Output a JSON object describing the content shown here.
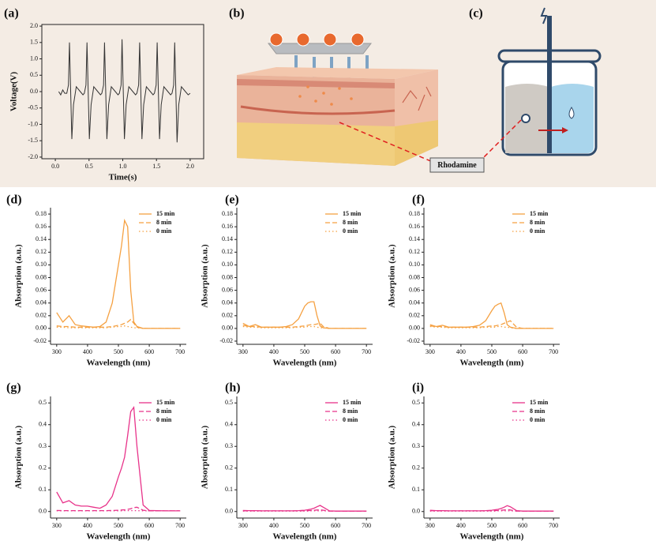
{
  "chart_data": [
    {
      "type": "line",
      "panel_label": "(a)",
      "x_label": "Time(s)",
      "y_label": "Voltage(V)",
      "frame": true,
      "color": "#333333",
      "xlim": [
        -0.2,
        2.2
      ],
      "ylim": [
        -2.05,
        2.05
      ],
      "xticks": [
        {
          "value": 0,
          "label": "0.0"
        },
        0.5,
        {
          "value": 1,
          "label": "1.0"
        },
        1.5,
        {
          "value": 2,
          "label": "2.0"
        }
      ],
      "yticks": [
        {
          "value": -2,
          "label": "-2.0"
        },
        -1.5,
        {
          "value": -1,
          "label": "-1.0"
        },
        -0.5,
        {
          "value": 0,
          "label": "0.0"
        },
        0.5,
        {
          "value": 1,
          "label": "1.0"
        },
        1.5,
        {
          "value": 2,
          "label": "2.0"
        }
      ],
      "x": [
        0.05,
        0.08,
        0.11,
        0.14,
        0.17,
        0.195,
        0.21,
        0.245,
        0.27,
        0.31,
        0.37,
        0.41,
        0.43,
        0.455,
        0.47,
        0.505,
        0.53,
        0.57,
        0.63,
        0.67,
        0.69,
        0.715,
        0.73,
        0.765,
        0.79,
        0.83,
        0.89,
        0.93,
        0.95,
        0.975,
        0.99,
        1.025,
        1.05,
        1.09,
        1.15,
        1.19,
        1.21,
        1.235,
        1.25,
        1.285,
        1.31,
        1.35,
        1.41,
        1.45,
        1.47,
        1.495,
        1.51,
        1.545,
        1.57,
        1.61,
        1.67,
        1.71,
        1.73,
        1.755,
        1.77,
        1.805,
        1.83,
        1.87,
        1.93,
        1.97,
        2.0
      ],
      "values": [
        0.0,
        -0.1,
        0.05,
        -0.05,
        -0.05,
        0.2,
        1.5,
        -1.45,
        -0.4,
        0.15,
        0.0,
        -0.1,
        -0.05,
        0.2,
        1.5,
        -1.45,
        -0.4,
        0.15,
        0.0,
        -0.1,
        -0.05,
        0.2,
        1.5,
        -1.45,
        -0.4,
        0.15,
        0.0,
        -0.1,
        -0.05,
        0.2,
        1.6,
        -1.45,
        -0.4,
        0.15,
        0.0,
        -0.1,
        -0.05,
        0.2,
        1.5,
        -1.45,
        -0.4,
        0.15,
        0.0,
        -0.1,
        -0.05,
        0.2,
        1.5,
        -1.45,
        -0.4,
        0.15,
        0.0,
        -0.1,
        -0.05,
        0.2,
        1.5,
        -1.55,
        -0.4,
        0.15,
        0.0,
        -0.1,
        -0.05
      ]
    },
    {
      "type": "line",
      "panel_label": "(d)",
      "x_label": "Wavelength (nm)",
      "y_label": "Absorption (a.u.)",
      "legend": "upper right",
      "xlim": [
        280,
        720
      ],
      "ylim": [
        -0.025,
        0.19
      ],
      "xticks": [
        300,
        400,
        500,
        600,
        700
      ],
      "yticks": [
        -0.02,
        {
          "value": 0,
          "label": "0.00"
        },
        0.02,
        0.04,
        0.06,
        0.08,
        {
          "value": 0.1,
          "label": "0.10"
        },
        0.12,
        0.14,
        0.16,
        0.18
      ],
      "x": [
        300,
        320,
        340,
        360,
        380,
        400,
        420,
        440,
        460,
        480,
        500,
        510,
        520,
        530,
        540,
        550,
        560,
        580,
        600,
        650,
        700
      ],
      "series": [
        {
          "name": "15 min",
          "color": "#f5a142",
          "style": "solid",
          "values": [
            0.025,
            0.01,
            0.02,
            0.006,
            0.004,
            0.003,
            0.002,
            0.003,
            0.01,
            0.04,
            0.1,
            0.13,
            0.17,
            0.16,
            0.06,
            0.01,
            0.003,
            0,
            0,
            0,
            0
          ]
        },
        {
          "name": "8 min",
          "color": "#f5a142",
          "style": "dashed",
          "values": [
            0.004,
            0.003,
            0.003,
            0.002,
            0.002,
            0.002,
            0.002,
            0.002,
            0.002,
            0.003,
            0.005,
            0.006,
            0.008,
            0.01,
            0.014,
            0.008,
            0.002,
            0,
            0,
            0,
            0
          ]
        },
        {
          "name": "0 min",
          "color": "#f5a142",
          "style": "dotted",
          "values": [
            0.002,
            0.002,
            0.001,
            0.001,
            0.001,
            0.001,
            0.001,
            0.001,
            0.001,
            0.002,
            0.003,
            0.003,
            0.004,
            0.003,
            0.002,
            0.001,
            0.001,
            0,
            0,
            0,
            0
          ]
        }
      ]
    },
    {
      "type": "line",
      "panel_label": "(e)",
      "x_label": "Wavelength (nm)",
      "y_label": "Absorption (a.u.)",
      "legend": "upper right",
      "xlim": [
        280,
        720
      ],
      "ylim": [
        -0.025,
        0.19
      ],
      "xticks": [
        300,
        400,
        500,
        600,
        700
      ],
      "yticks": [
        -0.02,
        {
          "value": 0,
          "label": "0.00"
        },
        0.02,
        0.04,
        0.06,
        0.08,
        {
          "value": 0.1,
          "label": "0.10"
        },
        0.12,
        0.14,
        0.16,
        0.18
      ],
      "x": [
        300,
        320,
        340,
        360,
        380,
        400,
        420,
        440,
        460,
        480,
        500,
        510,
        520,
        530,
        540,
        550,
        560,
        580,
        600,
        650,
        700
      ],
      "series": [
        {
          "name": "15 min",
          "color": "#f5a142",
          "style": "solid",
          "values": [
            0.008,
            0.003,
            0.006,
            0.002,
            0.002,
            0.002,
            0.002,
            0.003,
            0.006,
            0.015,
            0.035,
            0.04,
            0.042,
            0.042,
            0.02,
            0.004,
            0.001,
            0,
            0,
            0,
            0
          ]
        },
        {
          "name": "8 min",
          "color": "#f5a142",
          "style": "dashed",
          "values": [
            0.005,
            0.003,
            0.003,
            0.002,
            0.002,
            0.002,
            0.002,
            0.002,
            0.002,
            0.003,
            0.004,
            0.005,
            0.006,
            0.006,
            0.007,
            0.008,
            0.003,
            0,
            0,
            0,
            0
          ]
        },
        {
          "name": "0 min",
          "color": "#f5a142",
          "style": "dotted",
          "values": [
            0.003,
            0.002,
            0.002,
            0.001,
            0.001,
            0.001,
            0.001,
            0.001,
            0.001,
            0.002,
            0.002,
            0.003,
            0.003,
            0.003,
            0.002,
            0.001,
            0.001,
            0,
            0,
            0,
            0
          ]
        }
      ]
    },
    {
      "type": "line",
      "panel_label": "(f)",
      "x_label": "Wavelength (nm)",
      "y_label": "Absorption (a.u.)",
      "legend": "upper right",
      "xlim": [
        280,
        720
      ],
      "ylim": [
        -0.025,
        0.19
      ],
      "xticks": [
        300,
        400,
        500,
        600,
        700
      ],
      "yticks": [
        -0.02,
        {
          "value": 0,
          "label": "0.00"
        },
        0.02,
        0.04,
        0.06,
        0.08,
        {
          "value": 0.1,
          "label": "0.10"
        },
        0.12,
        0.14,
        0.16,
        0.18
      ],
      "x": [
        300,
        320,
        340,
        360,
        380,
        400,
        420,
        440,
        460,
        480,
        500,
        510,
        520,
        530,
        540,
        550,
        560,
        580,
        600,
        650,
        700
      ],
      "series": [
        {
          "name": "15 min",
          "color": "#f5a142",
          "style": "solid",
          "values": [
            0.006,
            0.003,
            0.005,
            0.002,
            0.002,
            0.002,
            0.002,
            0.003,
            0.005,
            0.012,
            0.028,
            0.035,
            0.038,
            0.04,
            0.025,
            0.006,
            0.002,
            0,
            0,
            0,
            0
          ]
        },
        {
          "name": "8 min",
          "color": "#f5a142",
          "style": "dashed",
          "values": [
            0.004,
            0.003,
            0.003,
            0.002,
            0.002,
            0.002,
            0.002,
            0.002,
            0.002,
            0.003,
            0.004,
            0.004,
            0.005,
            0.006,
            0.008,
            0.01,
            0.012,
            0.002,
            0,
            0,
            0
          ]
        },
        {
          "name": "0 min",
          "color": "#f5a142",
          "style": "dotted",
          "values": [
            0.003,
            0.002,
            0.002,
            0.001,
            0.001,
            0.001,
            0.001,
            0.001,
            0.001,
            0.002,
            0.002,
            0.002,
            0.003,
            0.003,
            0.002,
            0.002,
            0.001,
            0,
            0,
            0,
            0
          ]
        }
      ]
    },
    {
      "type": "line",
      "panel_label": "(g)",
      "x_label": "Wavelength (nm)",
      "y_label": "Absorption (a.u.)",
      "legend": "upper right",
      "xlim": [
        280,
        720
      ],
      "ylim": [
        -0.03,
        0.53
      ],
      "xticks": [
        300,
        400,
        500,
        600,
        700
      ],
      "yticks": [
        {
          "value": 0,
          "label": "0.0"
        },
        0.1,
        0.2,
        0.3,
        0.4,
        0.5
      ],
      "x": [
        300,
        320,
        340,
        360,
        380,
        400,
        420,
        440,
        460,
        480,
        500,
        510,
        520,
        530,
        540,
        550,
        560,
        580,
        600,
        650,
        700
      ],
      "series": [
        {
          "name": "15 min",
          "color": "#e8338a",
          "style": "solid",
          "values": [
            0.09,
            0.04,
            0.05,
            0.03,
            0.025,
            0.025,
            0.02,
            0.015,
            0.03,
            0.07,
            0.16,
            0.2,
            0.25,
            0.35,
            0.46,
            0.48,
            0.3,
            0.03,
            0.005,
            0.003,
            0.003
          ]
        },
        {
          "name": "8 min",
          "color": "#e8338a",
          "style": "dashed",
          "values": [
            0.005,
            0.004,
            0.004,
            0.004,
            0.004,
            0.004,
            0.004,
            0.004,
            0.004,
            0.005,
            0.006,
            0.007,
            0.008,
            0.01,
            0.013,
            0.018,
            0.02,
            0.006,
            0.003,
            0.003,
            0.003
          ]
        },
        {
          "name": "0 min",
          "color": "#e8338a",
          "style": "dotted",
          "values": [
            0.003,
            0.003,
            0.003,
            0.003,
            0.003,
            0.003,
            0.003,
            0.003,
            0.003,
            0.003,
            0.003,
            0.003,
            0.004,
            0.004,
            0.004,
            0.004,
            0.004,
            0.003,
            0.003,
            0.003,
            0.003
          ]
        }
      ]
    },
    {
      "type": "line",
      "panel_label": "(h)",
      "x_label": "Wavelength (nm)",
      "y_label": "Absorption (a.u.)",
      "legend": "upper right",
      "xlim": [
        280,
        720
      ],
      "ylim": [
        -0.03,
        0.53
      ],
      "xticks": [
        300,
        400,
        500,
        600,
        700
      ],
      "yticks": [
        {
          "value": 0,
          "label": "0.0"
        },
        0.1,
        0.2,
        0.3,
        0.4,
        0.5
      ],
      "x": [
        300,
        320,
        340,
        360,
        380,
        400,
        420,
        440,
        460,
        480,
        500,
        510,
        520,
        530,
        540,
        550,
        560,
        580,
        600,
        650,
        700
      ],
      "series": [
        {
          "name": "15 min",
          "color": "#e8338a",
          "style": "solid",
          "values": [
            0.005,
            0.004,
            0.004,
            0.003,
            0.003,
            0.003,
            0.003,
            0.003,
            0.003,
            0.004,
            0.006,
            0.008,
            0.011,
            0.015,
            0.022,
            0.028,
            0.02,
            0.003,
            0.002,
            0.002,
            0.002
          ]
        },
        {
          "name": "8 min",
          "color": "#e8338a",
          "style": "dashed",
          "values": [
            0.003,
            0.003,
            0.003,
            0.003,
            0.003,
            0.003,
            0.003,
            0.003,
            0.003,
            0.003,
            0.004,
            0.004,
            0.005,
            0.006,
            0.007,
            0.008,
            0.006,
            0.002,
            0.002,
            0.002,
            0.002
          ]
        },
        {
          "name": "0 min",
          "color": "#e8338a",
          "style": "dotted",
          "values": [
            0.002,
            0.002,
            0.002,
            0.002,
            0.002,
            0.002,
            0.002,
            0.002,
            0.002,
            0.002,
            0.002,
            0.002,
            0.003,
            0.003,
            0.003,
            0.003,
            0.003,
            0.002,
            0.002,
            0.002,
            0.002
          ]
        }
      ]
    },
    {
      "type": "line",
      "panel_label": "(i)",
      "x_label": "Wavelength (nm)",
      "y_label": "Absorption (a.u.)",
      "legend": "upper right",
      "xlim": [
        280,
        720
      ],
      "ylim": [
        -0.03,
        0.53
      ],
      "xticks": [
        300,
        400,
        500,
        600,
        700
      ],
      "yticks": [
        {
          "value": 0,
          "label": "0.0"
        },
        0.1,
        0.2,
        0.3,
        0.4,
        0.5
      ],
      "x": [
        300,
        320,
        340,
        360,
        380,
        400,
        420,
        440,
        460,
        480,
        500,
        510,
        520,
        530,
        540,
        550,
        560,
        580,
        600,
        650,
        700
      ],
      "series": [
        {
          "name": "15 min",
          "color": "#e8338a",
          "style": "solid",
          "values": [
            0.006,
            0.004,
            0.004,
            0.003,
            0.003,
            0.003,
            0.003,
            0.003,
            0.003,
            0.004,
            0.006,
            0.008,
            0.01,
            0.014,
            0.02,
            0.027,
            0.022,
            0.004,
            0.002,
            0.002,
            0.002
          ]
        },
        {
          "name": "8 min",
          "color": "#e8338a",
          "style": "dashed",
          "values": [
            0.004,
            0.003,
            0.003,
            0.003,
            0.003,
            0.003,
            0.003,
            0.003,
            0.003,
            0.003,
            0.004,
            0.004,
            0.005,
            0.006,
            0.007,
            0.009,
            0.007,
            0.002,
            0.002,
            0.002,
            0.002
          ]
        },
        {
          "name": "0 min",
          "color": "#e8338a",
          "style": "dotted",
          "values": [
            0.002,
            0.002,
            0.002,
            0.002,
            0.002,
            0.002,
            0.002,
            0.002,
            0.002,
            0.002,
            0.002,
            0.002,
            0.003,
            0.003,
            0.003,
            0.003,
            0.003,
            0.002,
            0.002,
            0.002,
            0.002
          ]
        }
      ]
    }
  ],
  "panel_labels": [
    "(b)",
    "(c)"
  ],
  "annotation": "Rhodamine"
}
